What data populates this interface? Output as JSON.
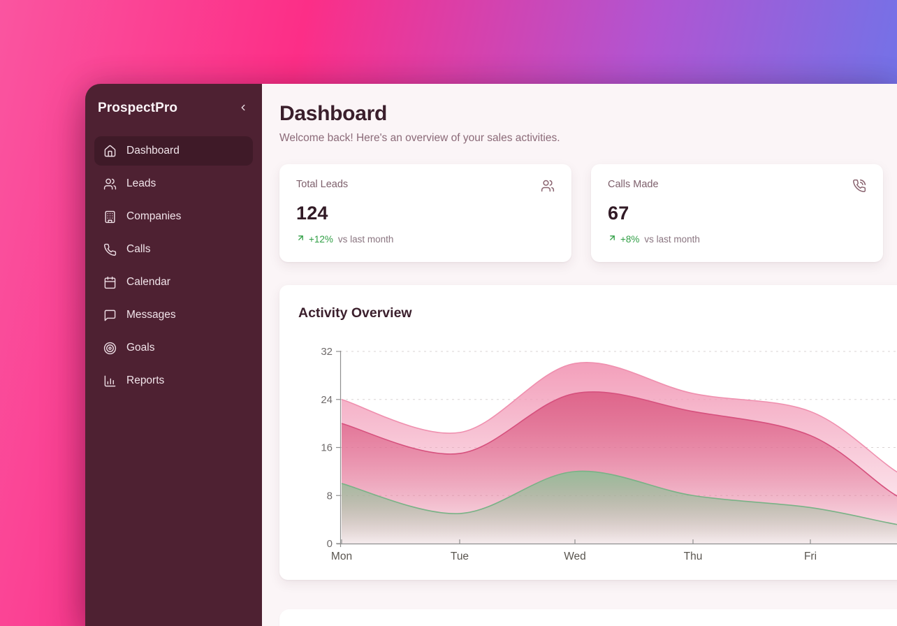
{
  "sidebar": {
    "brand": "ProspectPro",
    "collapse_icon": "chevron-left",
    "items": [
      {
        "label": "Dashboard",
        "icon": "home",
        "active": true
      },
      {
        "label": "Leads",
        "icon": "users",
        "active": false
      },
      {
        "label": "Companies",
        "icon": "building",
        "active": false
      },
      {
        "label": "Calls",
        "icon": "phone",
        "active": false
      },
      {
        "label": "Calendar",
        "icon": "calendar",
        "active": false
      },
      {
        "label": "Messages",
        "icon": "message-square",
        "active": false
      },
      {
        "label": "Goals",
        "icon": "target",
        "active": false
      },
      {
        "label": "Reports",
        "icon": "bar-chart",
        "active": false
      }
    ]
  },
  "header": {
    "title": "Dashboard",
    "subtitle": "Welcome back! Here's an overview of your sales activities."
  },
  "stats": [
    {
      "label": "Total Leads",
      "value": "124",
      "icon": "users",
      "trend_arrow": "arrow-up-right",
      "trend": "+12%",
      "trend_suffix": "vs last month"
    },
    {
      "label": "Calls Made",
      "value": "67",
      "icon": "phone-call",
      "trend_arrow": "arrow-up-right",
      "trend": "+8%",
      "trend_suffix": "vs last month"
    }
  ],
  "chart_card": {
    "title": "Activity Overview"
  },
  "chart_data": {
    "type": "area",
    "title": "Activity Overview",
    "x": [
      "Mon",
      "Tue",
      "Wed",
      "Thu",
      "Fri"
    ],
    "ylim": [
      0,
      32
    ],
    "yticks": [
      0,
      8,
      16,
      24,
      32
    ],
    "grid": "dashed-horizontal",
    "legend": "none",
    "note": "three overlapping smooth gradient area bands; plot is cropped at the right edge of the screenshot and keeps declining",
    "series": [
      {
        "name": "band-pink-light",
        "line_color": "#ef8fae",
        "fill_color": "#f29ab7",
        "values": [
          24,
          18.5,
          30,
          25,
          22
        ],
        "value_at_crop_edge": 12
      },
      {
        "name": "band-rose",
        "line_color": "#d6507d",
        "fill_color": "#dd6288",
        "values": [
          20,
          15,
          25,
          22,
          18
        ],
        "value_at_crop_edge": 8
      },
      {
        "name": "band-green",
        "line_color": "#79b286",
        "fill_color": "#94bd98",
        "values": [
          10,
          5,
          12,
          8,
          6
        ],
        "value_at_crop_edge": 3.2
      }
    ]
  },
  "colors": {
    "bg_gradient_left": "#fc2e87",
    "bg_gradient_right": "#7173e8",
    "sidebar_bg": "#4e2132",
    "sidebar_active_bg": "#3f1a28",
    "content_bg": "#fbf5f7",
    "heading": "#3b1f2c",
    "muted": "#8b6a78",
    "trend_green": "#2f9e44",
    "axis": "#8f8f8f",
    "grid_line": "#d9d3d3"
  }
}
